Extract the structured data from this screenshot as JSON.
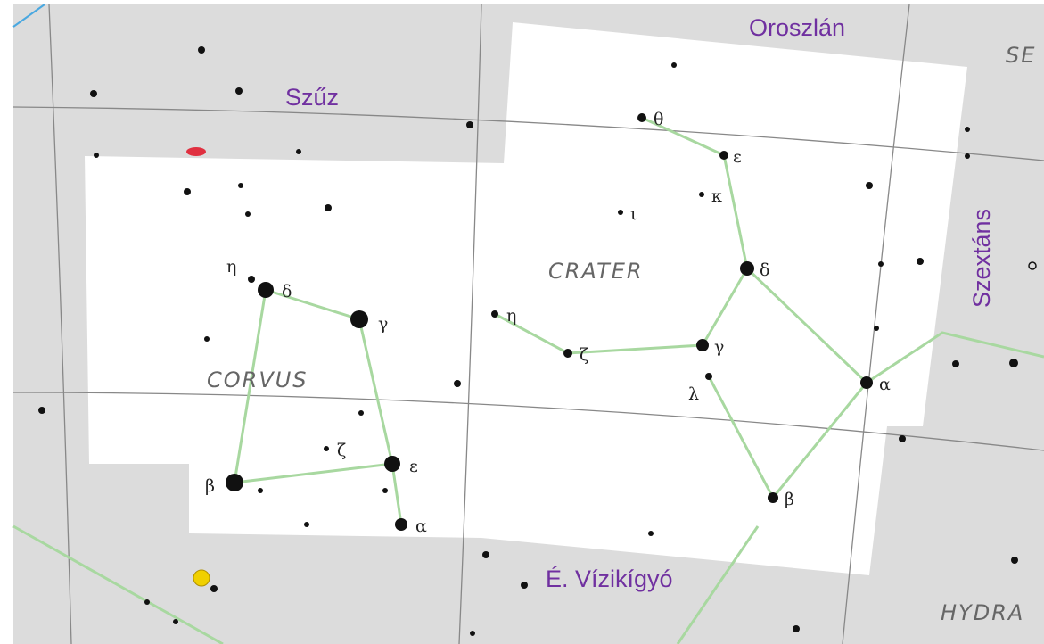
{
  "regions": [
    "Oroszlán",
    "Szűz",
    "Szextáns",
    "É. Vízikígyó"
  ],
  "constellations": [
    "CRATER",
    "CORVUS",
    "HYDRA",
    "SE"
  ],
  "crater_stars": [
    "θ",
    "ε",
    "κ",
    "ι",
    "δ",
    "η",
    "ζ",
    "γ",
    "λ",
    "α",
    "β"
  ],
  "corvus_stars": [
    "η",
    "δ",
    "γ",
    "ζ",
    "ε",
    "β",
    "α"
  ]
}
